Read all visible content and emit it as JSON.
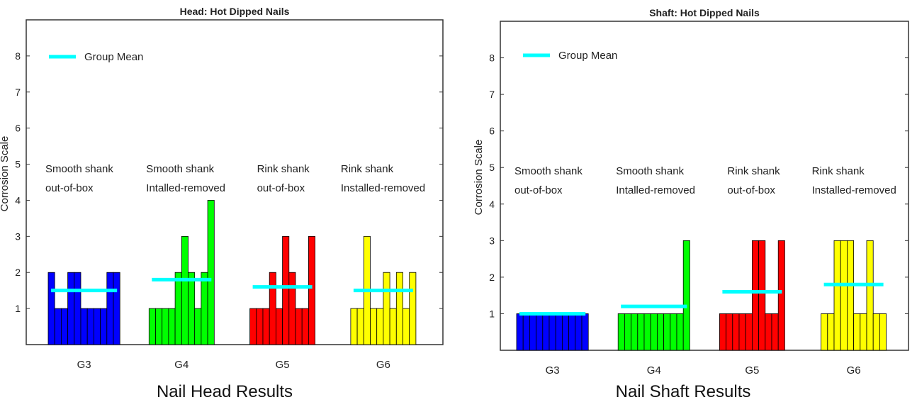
{
  "captions": [
    "Nail Head Results",
    "Nail Shaft Results"
  ],
  "chart_data": [
    {
      "type": "bar",
      "title": "Head: Hot Dipped Nails",
      "ylabel": "Corrosion Scale",
      "ylim": [
        0,
        9
      ],
      "yticks": [
        1,
        2,
        3,
        4,
        5,
        6,
        7,
        8
      ],
      "categories": [
        "G3",
        "G4",
        "G5",
        "G6"
      ],
      "legend": {
        "label": "Group Mean",
        "color": "#00FFFF",
        "position": "top-left"
      },
      "groups": [
        {
          "name": "G3",
          "color": "#0000FF",
          "label_lines": [
            "Smooth shank",
            "out-of-box"
          ],
          "values": [
            2,
            1,
            1,
            2,
            2,
            1,
            1,
            1,
            1,
            2,
            2
          ],
          "mean": 1.5
        },
        {
          "name": "G4",
          "color": "#00FF00",
          "label_lines": [
            "Smooth shank",
            "Intalled-removed"
          ],
          "values": [
            1,
            1,
            1,
            1,
            2,
            3,
            2,
            1,
            2,
            4
          ],
          "mean": 1.8
        },
        {
          "name": "G5",
          "color": "#FF0000",
          "label_lines": [
            "Rink shank",
            "out-of-box"
          ],
          "values": [
            1,
            1,
            1,
            2,
            1,
            3,
            2,
            1,
            1,
            3
          ],
          "mean": 1.6
        },
        {
          "name": "G6",
          "color": "#FFFF00",
          "label_lines": [
            "Rink shank",
            "Installed-removed"
          ],
          "values": [
            1,
            1,
            3,
            1,
            1,
            2,
            1,
            2,
            1,
            2
          ],
          "mean": 1.5
        }
      ]
    },
    {
      "type": "bar",
      "title": "Shaft: Hot Dipped Nails",
      "ylabel": "Corrosion Scale",
      "ylim": [
        0,
        9
      ],
      "yticks": [
        1,
        2,
        3,
        4,
        5,
        6,
        7,
        8
      ],
      "categories": [
        "G3",
        "G4",
        "G5",
        "G6"
      ],
      "legend": {
        "label": "Group Mean",
        "color": "#00FFFF",
        "position": "top-left"
      },
      "groups": [
        {
          "name": "G3",
          "color": "#0000FF",
          "label_lines": [
            "Smooth shank",
            "out-of-box"
          ],
          "values": [
            1,
            1,
            1,
            1,
            1,
            1,
            1,
            1,
            1,
            1,
            1
          ],
          "mean": 1.0
        },
        {
          "name": "G4",
          "color": "#00FF00",
          "label_lines": [
            "Smooth shank",
            "Intalled-removed"
          ],
          "values": [
            1,
            1,
            1,
            1,
            1,
            1,
            1,
            1,
            1,
            1,
            3
          ],
          "mean": 1.2
        },
        {
          "name": "G5",
          "color": "#FF0000",
          "label_lines": [
            "Rink shank",
            "out-of-box"
          ],
          "values": [
            1,
            1,
            1,
            1,
            1,
            3,
            3,
            1,
            1,
            3
          ],
          "mean": 1.6
        },
        {
          "name": "G6",
          "color": "#FFFF00",
          "label_lines": [
            "Rink shank",
            "Installed-removed"
          ],
          "values": [
            1,
            1,
            3,
            3,
            3,
            1,
            1,
            3,
            1,
            1
          ],
          "mean": 1.8
        }
      ]
    }
  ]
}
